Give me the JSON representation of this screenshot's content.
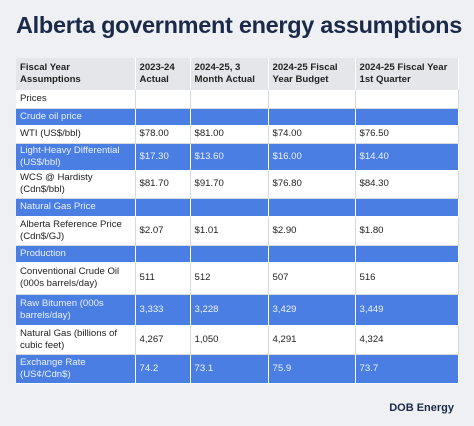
{
  "title": "Alberta government energy assumptions",
  "table": {
    "header": [
      "Fiscal Year Assumptions",
      "2023-24 Actual",
      "2024-25, 3 Month Actual",
      "2024-25 Fiscal Year Budget",
      "2024-25 Fiscal Year 1st Quarter"
    ],
    "rows": [
      [
        "Prices"
      ],
      [
        "Crude oil price"
      ],
      [
        "WTI (US$/bbl)",
        "$78.00",
        "$81.00",
        "$74.00",
        "$76.50"
      ],
      [
        "Light-Heavy Differential (US$/bbl)",
        "$17.30",
        "$13.60",
        "$16.00",
        "$14.40"
      ],
      [
        "WCS @ Hardisty (Cdn$/bbl)",
        "$81.70",
        "$91.70",
        "$76.80",
        "$84.30"
      ],
      [
        "Natural Gas Price"
      ],
      [
        "Alberta Reference Price (Cdn$/GJ)",
        "$2.07",
        "$1.01",
        "$2.90",
        "$1.80"
      ],
      [
        "Production"
      ],
      [
        "Conventional Crude Oil (000s barrels/day)",
        "511",
        "512",
        "507",
        "516"
      ],
      [
        "Raw Bitumen (000s barrels/day)",
        "3,333",
        "3,228",
        "3,429",
        "3,449"
      ],
      [
        "Natural Gas (billions of cubic feet)",
        "4,267",
        "1,050",
        "4,291",
        "4,324"
      ],
      [
        "Exchange Rate (US¢/Cdn$)",
        "74.2",
        "73.1",
        "75.9",
        "73.7"
      ]
    ]
  },
  "logo": "DOB Energy"
}
